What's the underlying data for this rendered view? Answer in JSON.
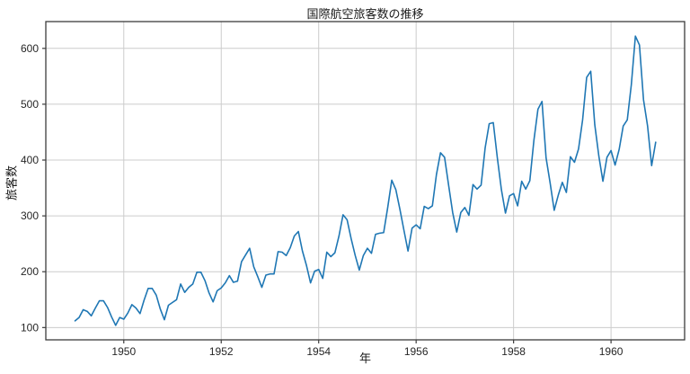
{
  "figure": {
    "title": "国際航空旅客数の推移",
    "xlabel": "年",
    "ylabel": "旅客数"
  },
  "chart_data": {
    "type": "line",
    "title": "国際航空旅客数の推移",
    "xlabel": "年",
    "ylabel": "旅客数",
    "x_start_year": 1949,
    "x_frequency": "monthly",
    "series": [
      {
        "name": "国際航空旅客数",
        "values": [
          112,
          118,
          132,
          129,
          121,
          135,
          148,
          148,
          136,
          119,
          104,
          118,
          115,
          126,
          141,
          135,
          125,
          149,
          170,
          170,
          158,
          133,
          114,
          140,
          145,
          150,
          178,
          163,
          172,
          178,
          199,
          199,
          184,
          162,
          146,
          166,
          171,
          180,
          193,
          181,
          183,
          218,
          230,
          242,
          209,
          191,
          172,
          194,
          196,
          196,
          236,
          235,
          229,
          243,
          264,
          272,
          237,
          211,
          180,
          201,
          204,
          188,
          235,
          227,
          234,
          264,
          302,
          293,
          259,
          229,
          203,
          229,
          242,
          233,
          267,
          269,
          270,
          315,
          364,
          347,
          312,
          274,
          237,
          278,
          284,
          277,
          317,
          313,
          318,
          374,
          413,
          405,
          355,
          306,
          271,
          306,
          315,
          301,
          356,
          348,
          355,
          422,
          465,
          467,
          404,
          347,
          305,
          336,
          340,
          318,
          362,
          348,
          363,
          435,
          491,
          505,
          404,
          359,
          310,
          337,
          360,
          342,
          406,
          396,
          420,
          472,
          548,
          559,
          463,
          407,
          362,
          405,
          417,
          391,
          419,
          461,
          472,
          535,
          622,
          606,
          508,
          461,
          390,
          432
        ]
      }
    ],
    "xlim": [
      1948.4,
      1961.51
    ],
    "ylim": [
      78,
      648
    ],
    "xticks": [
      1950,
      1952,
      1954,
      1956,
      1958,
      1960
    ],
    "yticks": [
      100,
      200,
      300,
      400,
      500,
      600
    ],
    "grid": true,
    "legend_position": "none",
    "colors": {
      "line": "#1f77b4",
      "grid": "#cccccc",
      "spine": "#3c3c3c",
      "tick_text": "#262626",
      "background": "#ffffff"
    }
  }
}
